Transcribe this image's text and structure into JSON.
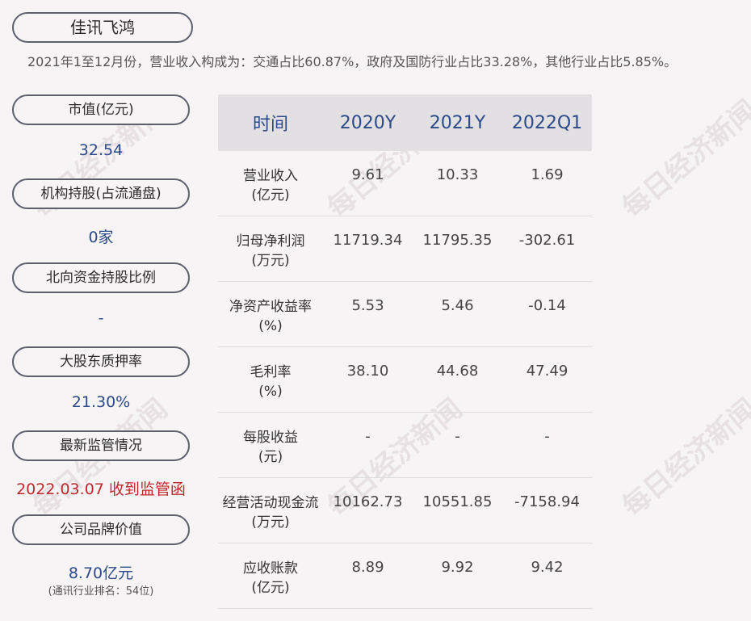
{
  "company": "佳讯飞鸿",
  "summary": "2021年1至12月份，营业收入构成为：交通占比60.87%，政府及国防行业占比33.28%，其他行业占比5.85%。",
  "watermark": "每日经济新闻",
  "sidebar": {
    "market_cap": {
      "label": "市值(亿元)",
      "value": "32.54"
    },
    "institution": {
      "label": "机构持股(占流通盘)",
      "value": "0家"
    },
    "northbound": {
      "label": "北向资金持股比例",
      "value": "-"
    },
    "pledge": {
      "label": "大股东质押率",
      "value": "21.30%"
    },
    "regulation": {
      "label": "最新监管情况",
      "value": "2022.03.07 收到监管函"
    },
    "brand": {
      "label": "公司品牌价值",
      "value": "8.70亿元",
      "note": "(通讯行业排名：54位)"
    }
  },
  "table": {
    "headers": [
      "时间",
      "2020Y",
      "2021Y",
      "2022Q1"
    ],
    "rows": [
      {
        "name": "营业收入",
        "unit": "(亿元)",
        "values": [
          "9.61",
          "10.33",
          "1.69"
        ]
      },
      {
        "name": "归母净利润",
        "unit": "(万元)",
        "values": [
          "11719.34",
          "11795.35",
          "-302.61"
        ]
      },
      {
        "name": "净资产收益率",
        "unit": "(%)",
        "values": [
          "5.53",
          "5.46",
          "-0.14"
        ]
      },
      {
        "name": "毛利率",
        "unit": "(%)",
        "values": [
          "38.10",
          "44.68",
          "47.49"
        ]
      },
      {
        "name": "每股收益",
        "unit": "(元)",
        "values": [
          "-",
          "-",
          "-"
        ]
      },
      {
        "name": "经营活动现金流",
        "unit": "(万元)",
        "values": [
          "10162.73",
          "10551.85",
          "-7158.94"
        ]
      },
      {
        "name": "应收账款",
        "unit": "(亿元)",
        "values": [
          "8.89",
          "9.92",
          "9.42"
        ]
      }
    ]
  },
  "colors": {
    "value_blue": "#2c4a8a",
    "alert_red": "#c0282d",
    "header_bg": "#e2e0e2"
  }
}
